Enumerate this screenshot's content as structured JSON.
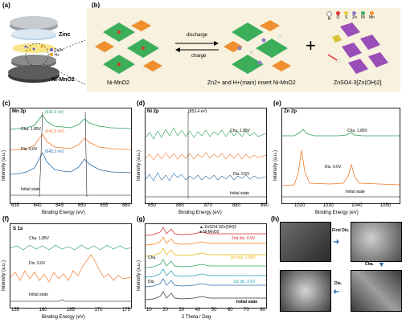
{
  "panels": {
    "a": {
      "letter": "(a)",
      "zinc": "Zinc",
      "nimno2": "Ni-MnO2",
      "legend": [
        "Zn2+",
        "H+"
      ]
    },
    "b": {
      "letter": "(b)",
      "discharge": "discharge",
      "charge": "charge",
      "left_label": "Ni-MnO2",
      "mid_label": "Zn2+ and H+(main) insert Ni-MnO2",
      "right_label": "ZnSO4·3[Zn(OH)2]",
      "element_legend": [
        "H",
        "O",
        "S",
        "Zn",
        "Ni",
        "Mn"
      ],
      "plus": "+"
    },
    "c": {
      "letter": "(c)",
      "title": "Mn 2p",
      "xlabel": "Binding Energy (eV)",
      "ylabel": "Intensity (a.u.)",
      "ticks": [
        "635",
        "640",
        "645",
        "650",
        "655",
        "660"
      ],
      "labels": [
        "Cha. 1.85V",
        "Dis. 0.6V",
        "Initial state"
      ],
      "peaks": [
        "(642.3 eV)",
        "(641.9 eV)",
        "(642.2 eV)"
      ]
    },
    "d": {
      "letter": "(d)",
      "title": "Ni 2p",
      "xlabel": "Binding Energy (eV)",
      "ylabel": "Intensity (a.u.)",
      "ticks": [
        "850",
        "860",
        "870",
        "880",
        "890"
      ],
      "labels": [
        "Cha. 1.85V",
        "Dis. 0.6V",
        "Initial state"
      ],
      "peak": "(853.4 eV)"
    },
    "e": {
      "letter": "(e)",
      "title": "Zn 2p",
      "xlabel": "Binding Energy (eV)",
      "ylabel": "Intensity (a.u.)",
      "ticks": [
        "1020",
        "1030",
        "1040",
        "1050"
      ],
      "labels": [
        "Cha. 1.85V",
        "Dis. 0.6V",
        "Initial state"
      ]
    },
    "f": {
      "letter": "(f)",
      "title": "S 1s",
      "xlabel": "Binding Energy (eV)",
      "ylabel": "Intensity (a.u.)",
      "ticks": [
        "155",
        "160",
        "165",
        "170",
        "175"
      ],
      "labels": [
        "Cha. 1.85V",
        "Dis. 0.6V",
        "Initial state"
      ]
    },
    "g": {
      "letter": "(g)",
      "xlabel": "2 Theta / Deg",
      "ylabel": "Intensity (a.u.)",
      "ticks": [
        "10",
        "20",
        "30",
        "40",
        "50",
        "60",
        "70",
        "80"
      ],
      "legend": [
        "ZnSO4·3Zn(OH)2",
        "Ni-MnO2"
      ],
      "labels": [
        "2nd dis. 0.6V",
        "1st cha. 1.85V",
        "1st dis. 0.6V",
        "Initial state"
      ],
      "side": [
        "Cha.",
        "Dis."
      ]
    },
    "h": {
      "letter": "(h)",
      "first_dis": "First Dis.",
      "cha": "Cha.",
      "dis": "Dis."
    }
  },
  "colors": {
    "green": "#2ca05a",
    "orange": "#f07a2a",
    "blue": "#2a6aa8",
    "gray": "#555555"
  }
}
